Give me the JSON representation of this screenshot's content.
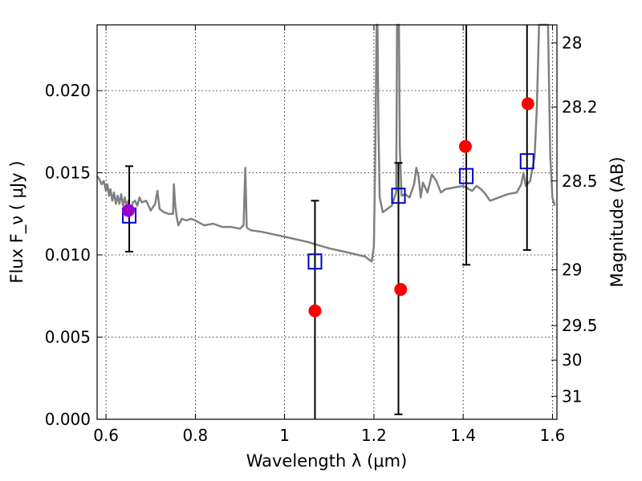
{
  "chart_data": {
    "type": "scatter",
    "xlabel": "Wavelength  λ (μm)",
    "ylabel": "Flux  F_ν  ( μJy )",
    "ylabel_right": "Magnitude (AB)",
    "xlim": [
      0.58,
      1.61
    ],
    "ylim": [
      0.0,
      0.024
    ],
    "grid": true,
    "x_ticks": [
      0.6,
      0.8,
      1.0,
      1.2,
      1.4,
      1.6
    ],
    "x_tick_labels": [
      "0.6",
      "0.8",
      "1",
      "1.2",
      "1.4",
      "1.6"
    ],
    "y_ticks": [
      0.0,
      0.005,
      0.01,
      0.015,
      0.02
    ],
    "y_tick_labels": [
      "0.000",
      "0.005",
      "0.010",
      "0.015",
      "0.020"
    ],
    "right_ticks": [
      {
        "label": "28",
        "flux": 0.0229
      },
      {
        "label": "28.2",
        "flux": 0.019
      },
      {
        "label": "28.5",
        "flux": 0.0145
      },
      {
        "label": "29",
        "flux": 0.0091
      },
      {
        "label": "29.5",
        "flux": 0.0057
      },
      {
        "label": "30",
        "flux": 0.0036
      },
      {
        "label": "31",
        "flux": 0.0014
      }
    ],
    "colors": {
      "model_line": "#808080",
      "observed": "#ff0000",
      "observed_first": "#9900cc",
      "model_box": "#0000cc",
      "errorbar": "#000000"
    },
    "series": [
      {
        "type": "line",
        "x": [
          0.58,
          0.585,
          0.59,
          0.595,
          0.6,
          0.603,
          0.607,
          0.61,
          0.614,
          0.618,
          0.622,
          0.626,
          0.63,
          0.634,
          0.638,
          0.642,
          0.646,
          0.65,
          0.655,
          0.66,
          0.665,
          0.67,
          0.675,
          0.68,
          0.69,
          0.7,
          0.71,
          0.715,
          0.72,
          0.73,
          0.74,
          0.75,
          0.752,
          0.755,
          0.758,
          0.762,
          0.77,
          0.78,
          0.79,
          0.8,
          0.82,
          0.84,
          0.86,
          0.88,
          0.9,
          0.908,
          0.912,
          0.915,
          0.918,
          0.925,
          0.95,
          1.0,
          1.05,
          1.1,
          1.15,
          1.18,
          1.19,
          1.195,
          1.2,
          1.203,
          1.206,
          1.208,
          1.21,
          1.213,
          1.22,
          1.23,
          1.24,
          1.25,
          1.252,
          1.256,
          1.258,
          1.262,
          1.27,
          1.28,
          1.29,
          1.295,
          1.3,
          1.305,
          1.31,
          1.32,
          1.33,
          1.34,
          1.35,
          1.36,
          1.38,
          1.4,
          1.42,
          1.43,
          1.44,
          1.45,
          1.46,
          1.5,
          1.52,
          1.53,
          1.535,
          1.54,
          1.55,
          1.56,
          1.565,
          1.57,
          1.575,
          1.58,
          1.585,
          1.59,
          1.595,
          1.6,
          1.605
        ],
        "y": [
          0.0148,
          0.0146,
          0.0143,
          0.0145,
          0.0139,
          0.0143,
          0.0136,
          0.014,
          0.0133,
          0.0138,
          0.0131,
          0.0136,
          0.0131,
          0.0137,
          0.013,
          0.0135,
          0.013,
          0.0133,
          0.0125,
          0.0132,
          0.0133,
          0.013,
          0.0135,
          0.0132,
          0.0133,
          0.0127,
          0.0131,
          0.0139,
          0.0128,
          0.0126,
          0.0125,
          0.0125,
          0.0143,
          0.013,
          0.0124,
          0.0118,
          0.0122,
          0.0121,
          0.0122,
          0.0121,
          0.0118,
          0.0119,
          0.0117,
          0.0117,
          0.0116,
          0.0118,
          0.0153,
          0.0117,
          0.0116,
          0.0115,
          0.0114,
          0.0111,
          0.0108,
          0.0104,
          0.0101,
          0.0099,
          0.0097,
          0.0096,
          0.0105,
          0.016,
          0.024,
          0.024,
          0.018,
          0.0135,
          0.0126,
          0.0128,
          0.013,
          0.0138,
          0.024,
          0.024,
          0.0165,
          0.0136,
          0.0137,
          0.0135,
          0.0143,
          0.0153,
          0.0148,
          0.0135,
          0.0144,
          0.0138,
          0.0149,
          0.0145,
          0.0138,
          0.014,
          0.0141,
          0.0142,
          0.0139,
          0.0142,
          0.014,
          0.0137,
          0.0133,
          0.0137,
          0.0138,
          0.0143,
          0.015,
          0.0142,
          0.0145,
          0.016,
          0.019,
          0.024,
          0.024,
          0.024,
          0.024,
          0.024,
          0.016,
          0.0135,
          0.013
        ]
      },
      {
        "type": "points",
        "name": "observed",
        "x": [
          0.65,
          1.068,
          1.26,
          1.405,
          1.545
        ],
        "y": [
          0.0127,
          0.0066,
          0.0079,
          0.0166,
          0.0192
        ]
      },
      {
        "type": "points",
        "name": "model",
        "x": [
          0.652,
          1.068,
          1.255,
          1.407,
          1.543
        ],
        "y": [
          0.0124,
          0.0096,
          0.0136,
          0.0148,
          0.0157
        ],
        "err_low": [
          0.0102,
          0.0,
          0.0003,
          0.0094,
          0.0103
        ],
        "err_high": [
          0.0154,
          0.0133,
          0.0156,
          0.024,
          0.024
        ]
      }
    ]
  }
}
